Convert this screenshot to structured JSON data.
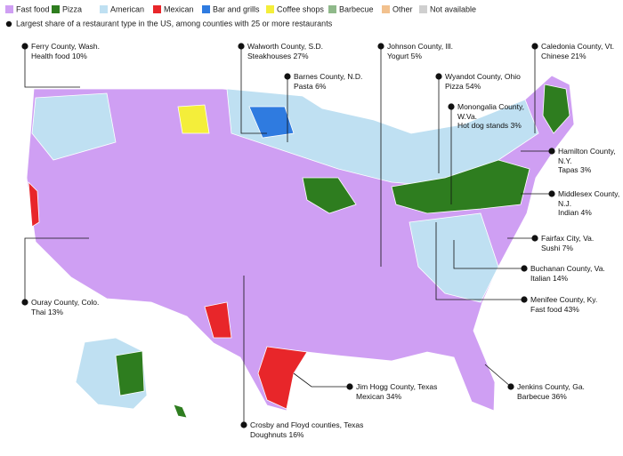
{
  "legend": [
    {
      "name": "Fast food",
      "color": "#cf9ff3"
    },
    {
      "name": "Pizza",
      "color": "#2e7d1f"
    },
    {
      "name": "American",
      "color": "#bfe0f2"
    },
    {
      "name": "Mexican",
      "color": "#e8262a"
    },
    {
      "name": "Bar and grills",
      "color": "#2f7be0"
    },
    {
      "name": "Coffee shops",
      "color": "#f4ee3a"
    },
    {
      "name": "Barbecue",
      "color": "#8fb98a"
    },
    {
      "name": "Other",
      "color": "#f2c18e"
    },
    {
      "name": "Not available",
      "color": "#cfcfcf"
    }
  ],
  "subtitle": "Largest share of a restaurant type in the US, among counties with 25 or more restaurants",
  "annotations": [
    {
      "county": "Ferry County, Wash.",
      "label": "Health food 10%"
    },
    {
      "county": "Walworth County, S.D.",
      "label": "Steakhouses 27%"
    },
    {
      "county": "Barnes County, N.D.",
      "label": "Pasta 6%"
    },
    {
      "county": "Johnson County, Ill.",
      "label": "Yogurt 5%"
    },
    {
      "county": "Caledonia County, Vt.",
      "label": "Chinese 21%"
    },
    {
      "county": "Wyandot County, Ohio",
      "label": "Pizza 54%"
    },
    {
      "county": "Monongalia County, W.Va.",
      "label": "Hot dog stands 3%"
    },
    {
      "county": "Hamilton County, N.Y.",
      "label": "Tapas 3%"
    },
    {
      "county": "Middlesex County, N.J.",
      "label": "Indian 4%"
    },
    {
      "county": "Fairfax City, Va.",
      "label": "Sushi 7%"
    },
    {
      "county": "Buchanan County, Va.",
      "label": "Italian 14%"
    },
    {
      "county": "Menifee County, Ky.",
      "label": "Fast food 43%"
    },
    {
      "county": "Ouray County, Colo.",
      "label": "Thai 13%"
    },
    {
      "county": "Jim Hogg County, Texas",
      "label": "Mexican 34%"
    },
    {
      "county": "Jenkins County, Ga.",
      "label": "Barbecue 36%"
    },
    {
      "county": "Crosby and Floyd counties, Texas",
      "label": "Doughnuts 16%"
    }
  ]
}
